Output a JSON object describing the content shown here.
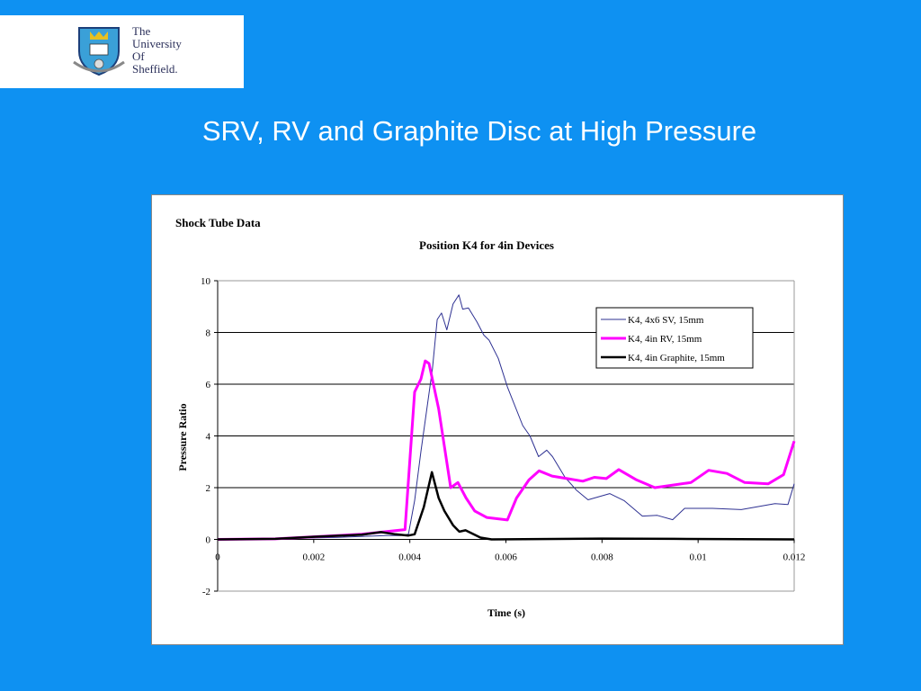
{
  "logo": {
    "lines": [
      "The",
      "University",
      "Of",
      "Sheffield."
    ]
  },
  "slide_title": "SRV, RV and Graphite Disc at High Pressure",
  "chart_data": {
    "type": "line",
    "supertitle": "Shock Tube Data",
    "title": "Position K4 for 4in Devices",
    "xlabel": "Time (s)",
    "ylabel": "Pressure Ratio",
    "xlim": [
      0,
      0.012
    ],
    "ylim": [
      -2,
      10
    ],
    "xticks": [
      "0",
      "0.002",
      "0.004",
      "0.006",
      "0.008",
      "0.01",
      "0.012"
    ],
    "xtick_values": [
      0,
      0.002,
      0.004,
      0.006,
      0.008,
      0.01,
      0.012
    ],
    "yticks": [
      "-2",
      "0",
      "2",
      "4",
      "6",
      "8",
      "10"
    ],
    "ytick_values": [
      -2,
      0,
      2,
      4,
      6,
      8,
      10
    ],
    "grid": "horizontal",
    "legend_position": "top-right",
    "series": [
      {
        "name": "K4, 4x6 SV, 15mm",
        "color": "#2E3192",
        "x": [
          0,
          0.0012,
          0.0025,
          0.0035,
          0.0038,
          0.00397,
          0.0041,
          0.00423,
          0.00435,
          0.00447,
          0.00457,
          0.00466,
          0.00477,
          0.0049,
          0.00502,
          0.0051,
          0.00522,
          0.0054,
          0.00554,
          0.00565,
          0.00584,
          0.00603,
          0.00635,
          0.0065,
          0.00668,
          0.00685,
          0.00697,
          0.00723,
          0.00747,
          0.00771,
          0.00816,
          0.00846,
          0.00884,
          0.00915,
          0.00947,
          0.00972,
          0.0103,
          0.0109,
          0.0116,
          0.01187,
          0.012
        ],
        "y": [
          0,
          0.02,
          0.08,
          0.15,
          0.15,
          0.2,
          1.5,
          3.4,
          5.0,
          6.6,
          8.5,
          8.75,
          8.1,
          9.1,
          9.45,
          8.9,
          8.95,
          8.4,
          7.9,
          7.7,
          7.0,
          5.9,
          4.4,
          4.0,
          3.2,
          3.45,
          3.2,
          2.4,
          1.9,
          1.53,
          1.77,
          1.5,
          0.9,
          0.93,
          0.76,
          1.2,
          1.2,
          1.15,
          1.38,
          1.35,
          2.15
        ]
      },
      {
        "name": "K4, 4in RV, 15mm",
        "color": "#FF00FF",
        "x": [
          0,
          0.0012,
          0.002,
          0.003,
          0.0035,
          0.0039,
          0.0041,
          0.00423,
          0.00432,
          0.0044,
          0.0046,
          0.00485,
          0.005,
          0.00517,
          0.00535,
          0.0056,
          0.00603,
          0.00622,
          0.00648,
          0.00669,
          0.00696,
          0.0076,
          0.00784,
          0.00809,
          0.00835,
          0.00872,
          0.0091,
          0.00985,
          0.01022,
          0.0106,
          0.01097,
          0.01146,
          0.01178,
          0.012
        ],
        "y": [
          0,
          0.02,
          0.1,
          0.2,
          0.3,
          0.38,
          5.7,
          6.2,
          6.9,
          6.8,
          5.05,
          2.0,
          2.2,
          1.6,
          1.1,
          0.85,
          0.75,
          1.6,
          2.3,
          2.65,
          2.45,
          2.25,
          2.4,
          2.35,
          2.7,
          2.3,
          2.0,
          2.2,
          2.67,
          2.55,
          2.2,
          2.15,
          2.5,
          3.8
        ]
      },
      {
        "name": "K4, 4in Graphite, 15mm",
        "color": "#000000",
        "x": [
          0,
          0.0012,
          0.002,
          0.003,
          0.0034,
          0.0037,
          0.00397,
          0.0041,
          0.00429,
          0.00446,
          0.0046,
          0.00472,
          0.0049,
          0.00503,
          0.00516,
          0.00547,
          0.0057,
          0.008,
          0.0095,
          0.012
        ],
        "y": [
          0,
          0.02,
          0.1,
          0.18,
          0.28,
          0.2,
          0.15,
          0.2,
          1.25,
          2.6,
          1.6,
          1.1,
          0.55,
          0.3,
          0.35,
          0.07,
          0,
          0.03,
          0.02,
          0
        ]
      }
    ]
  }
}
